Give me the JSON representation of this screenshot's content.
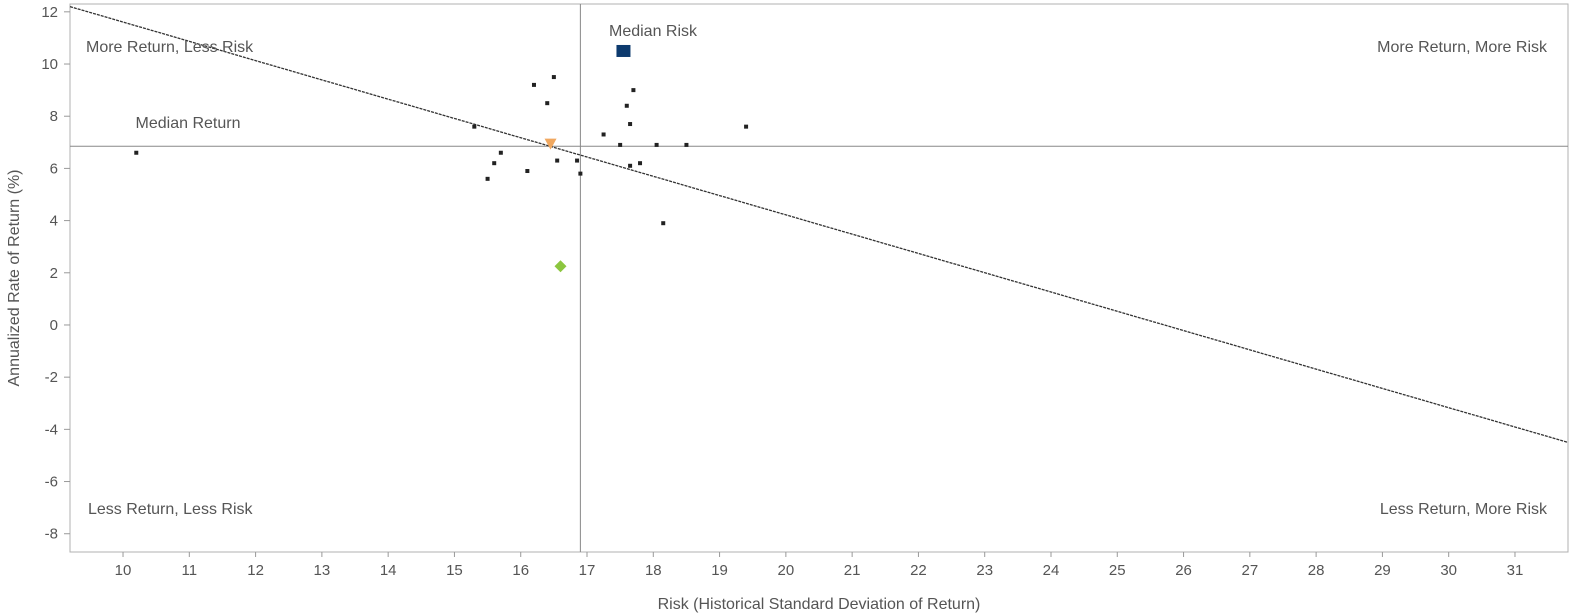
{
  "chart_data": {
    "type": "scatter",
    "xlabel": "Risk (Historical Standard Deviation of Return)",
    "ylabel": "Annualized Rate of Return (%)",
    "xlim": [
      9.2,
      31.8
    ],
    "ylim": [
      -8.7,
      12.3
    ],
    "xticks": [
      10,
      11,
      12,
      13,
      14,
      15,
      16,
      17,
      18,
      19,
      20,
      21,
      22,
      23,
      24,
      25,
      26,
      27,
      28,
      29,
      30,
      31
    ],
    "yticks": [
      12,
      10,
      8,
      6,
      4,
      2,
      0,
      -2,
      -4,
      -6,
      -8
    ],
    "grid": false,
    "median_risk": 16.9,
    "median_return": 6.85,
    "median_risk_label": "Median Risk",
    "median_return_label": "Median Return",
    "quadrant_labels": {
      "top_left": "More Return, Less Risk",
      "top_right": "More Return, More Risk",
      "bottom_left": "Less Return, Less Risk",
      "bottom_right": "Less Return, More Risk"
    },
    "trend_line": {
      "x": [
        9.2,
        31.8
      ],
      "y": [
        12.2,
        -4.5
      ],
      "color": "#333333"
    },
    "peer_points": {
      "color": "#222222",
      "points": [
        [
          10.2,
          6.6
        ],
        [
          15.3,
          7.6
        ],
        [
          15.5,
          5.6
        ],
        [
          15.6,
          6.2
        ],
        [
          15.7,
          6.6
        ],
        [
          16.1,
          5.9
        ],
        [
          16.2,
          9.2
        ],
        [
          16.4,
          8.5
        ],
        [
          16.5,
          9.5
        ],
        [
          16.55,
          6.3
        ],
        [
          16.85,
          6.3
        ],
        [
          16.9,
          5.8
        ],
        [
          17.25,
          7.3
        ],
        [
          17.5,
          6.9
        ],
        [
          17.6,
          8.4
        ],
        [
          17.65,
          6.1
        ],
        [
          17.65,
          7.7
        ],
        [
          17.7,
          9.0
        ],
        [
          17.8,
          6.2
        ],
        [
          18.05,
          6.9
        ],
        [
          18.15,
          3.9
        ],
        [
          18.5,
          6.9
        ],
        [
          19.4,
          7.6
        ]
      ]
    },
    "highlighted_points": [
      {
        "marker": "square",
        "x": 17.55,
        "y": 10.5,
        "color": "#0d3a6e"
      },
      {
        "marker": "diamond",
        "x": 16.6,
        "y": 2.25,
        "color": "#8cc63f"
      },
      {
        "marker": "triangle-down",
        "x": 16.45,
        "y": 6.95,
        "color": "#f0a860"
      }
    ]
  }
}
